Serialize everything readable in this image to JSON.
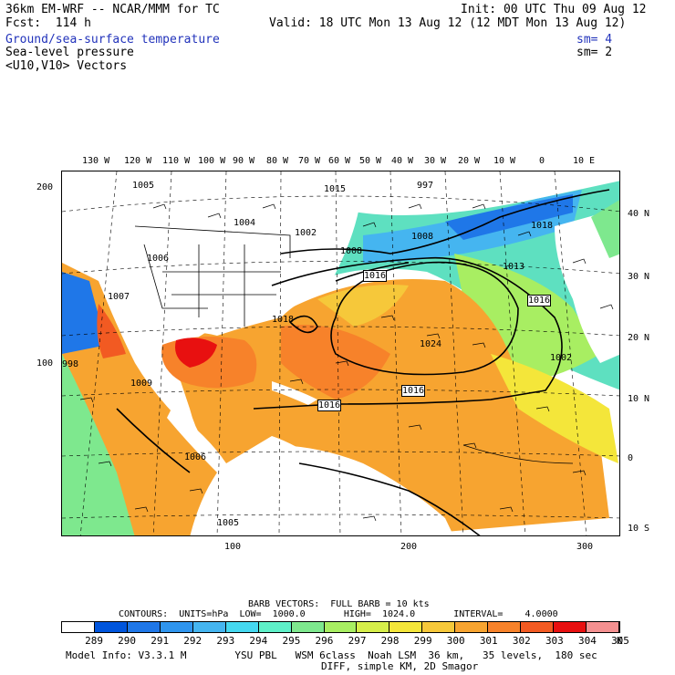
{
  "header": {
    "model": "36km EM-WRF -- NCAR/MMM for TC",
    "init": "Init: 00 UTC Thu 09 Aug 12",
    "fcst": "Fcst:  114 h",
    "valid": "Valid: 18 UTC Mon 13 Aug 12 (12 MDT Mon 13 Aug 12)",
    "field1": "Ground/sea-surface temperature",
    "field1_sm": "sm= 4",
    "field2": "Sea-level pressure",
    "field2_sm": "sm= 2",
    "field3": "<U10,V10> Vectors"
  },
  "map": {
    "top_lon_labels": [
      "130 W",
      "120 W",
      "110 W",
      "100 W",
      "90 W",
      "80 W",
      "70 W",
      "60 W",
      "50 W",
      "40 W",
      "30 W",
      "20 W",
      "10 W",
      "0",
      "10 E"
    ],
    "right_lat_labels": [
      "40 N",
      "30 N",
      "20 N",
      "10 N",
      "0",
      "10 S"
    ],
    "left_labels": [
      "200",
      "100"
    ],
    "bottom_labels": [
      "100",
      "200",
      "300"
    ],
    "pressure_labels": [
      "1005",
      "1004",
      "1002",
      "1015",
      "997",
      "1008",
      "1018",
      "1006",
      "1007",
      "1013",
      "1016",
      "1016",
      "1024",
      "1016",
      "998",
      "1009",
      "1016",
      "1018",
      "1002",
      "1006",
      "1005",
      "1008"
    ],
    "land_color": "#ffffff",
    "contour_color": "#000000"
  },
  "footer": {
    "barb": "BARB VECTORS:  FULL BARB = 10 kts",
    "contours": "CONTOURS:  UNITS=hPa  LOW=  1000.0       HIGH=  1024.0       INTERVAL=    4.0000",
    "colorbar_labels": [
      "289",
      "290",
      "291",
      "292",
      "293",
      "294",
      "295",
      "296",
      "297",
      "298",
      "299",
      "300",
      "301",
      "302",
      "303",
      "304",
      "305"
    ],
    "unit": "K",
    "colorbar_colors": [
      "#ffffff",
      "#0055dd",
      "#1f77e8",
      "#2f95ee",
      "#45b5f0",
      "#45d8f0",
      "#5ef0c8",
      "#7ee88e",
      "#a8ee62",
      "#d6ee4a",
      "#f4e63a",
      "#f6c83a",
      "#f7a430",
      "#f7822a",
      "#f25a22",
      "#e81010",
      "#f49090"
    ],
    "model_info": "Model Info: V3.3.1 M        YSU PBL   WSM 6class  Noah LSM  36 km,   35 levels,  180 sec",
    "model_info2": "DIFF, simple KM, 2D Smagor"
  }
}
